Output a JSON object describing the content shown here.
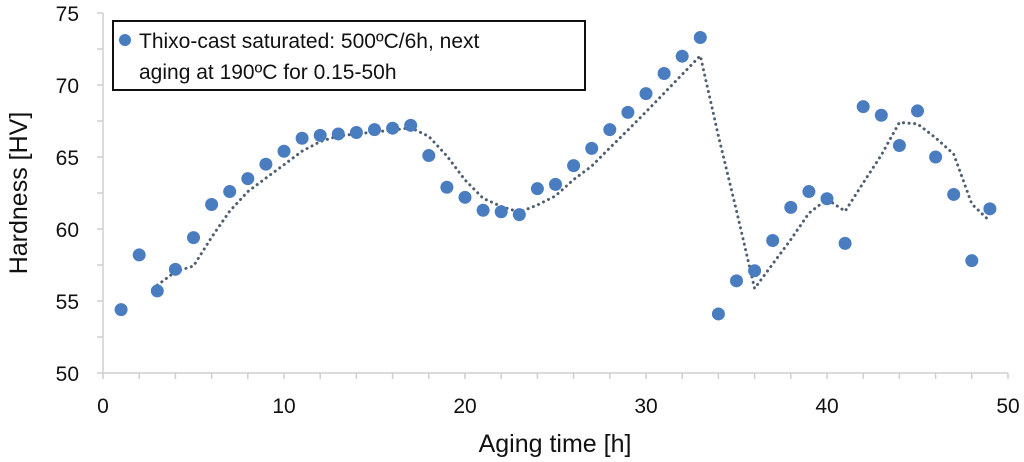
{
  "chart_data": {
    "type": "scatter",
    "title": "",
    "xlabel": "Aging time [h]",
    "ylabel": "Hardness [HV]",
    "xlim": [
      0,
      50
    ],
    "ylim": [
      50,
      75
    ],
    "xticks": [
      0,
      10,
      20,
      30,
      40,
      50
    ],
    "yticks": [
      50,
      55,
      60,
      65,
      70,
      75
    ],
    "x_minor_step": 2,
    "y_minor_step": 2.5,
    "grid": false,
    "legend": {
      "placement": "top-left",
      "entries": [
        {
          "label_lines": [
            "Thixo-cast saturated: 500ºC/6h, next",
            "aging at 190ºC for 0.15-50h"
          ],
          "marker": "circle"
        }
      ]
    },
    "series": [
      {
        "name": "Thixo-cast saturated: 500ºC/6h, next aging at 190ºC for 0.15-50h",
        "color": "#4a7dbf",
        "x": [
          1,
          2,
          3,
          4,
          5,
          6,
          7,
          8,
          9,
          10,
          11,
          12,
          13,
          14,
          15,
          16,
          17,
          18,
          19,
          20,
          21,
          22,
          23,
          24,
          25,
          26,
          27,
          28,
          29,
          30,
          31,
          32,
          33,
          34,
          35,
          36,
          37,
          38,
          39,
          40,
          41,
          42,
          43,
          44,
          45,
          46,
          47,
          48,
          49
        ],
        "y": [
          54.4,
          58.2,
          55.7,
          57.2,
          59.4,
          61.7,
          62.6,
          63.5,
          64.5,
          65.4,
          66.3,
          66.5,
          66.6,
          66.7,
          66.9,
          67.0,
          67.2,
          65.1,
          62.9,
          62.2,
          61.3,
          61.2,
          61.0,
          62.8,
          63.1,
          64.4,
          65.6,
          66.9,
          68.1,
          69.4,
          70.8,
          72.0,
          73.3,
          54.1,
          56.4,
          57.1,
          59.2,
          61.5,
          62.6,
          62.1,
          59.0,
          68.5,
          67.9,
          65.8,
          68.2,
          65.0,
          62.4,
          57.8,
          61.4
        ]
      }
    ],
    "trendline": {
      "type": "moving-average",
      "period": 3,
      "style": "dotted",
      "color": "#4f5f70"
    }
  }
}
